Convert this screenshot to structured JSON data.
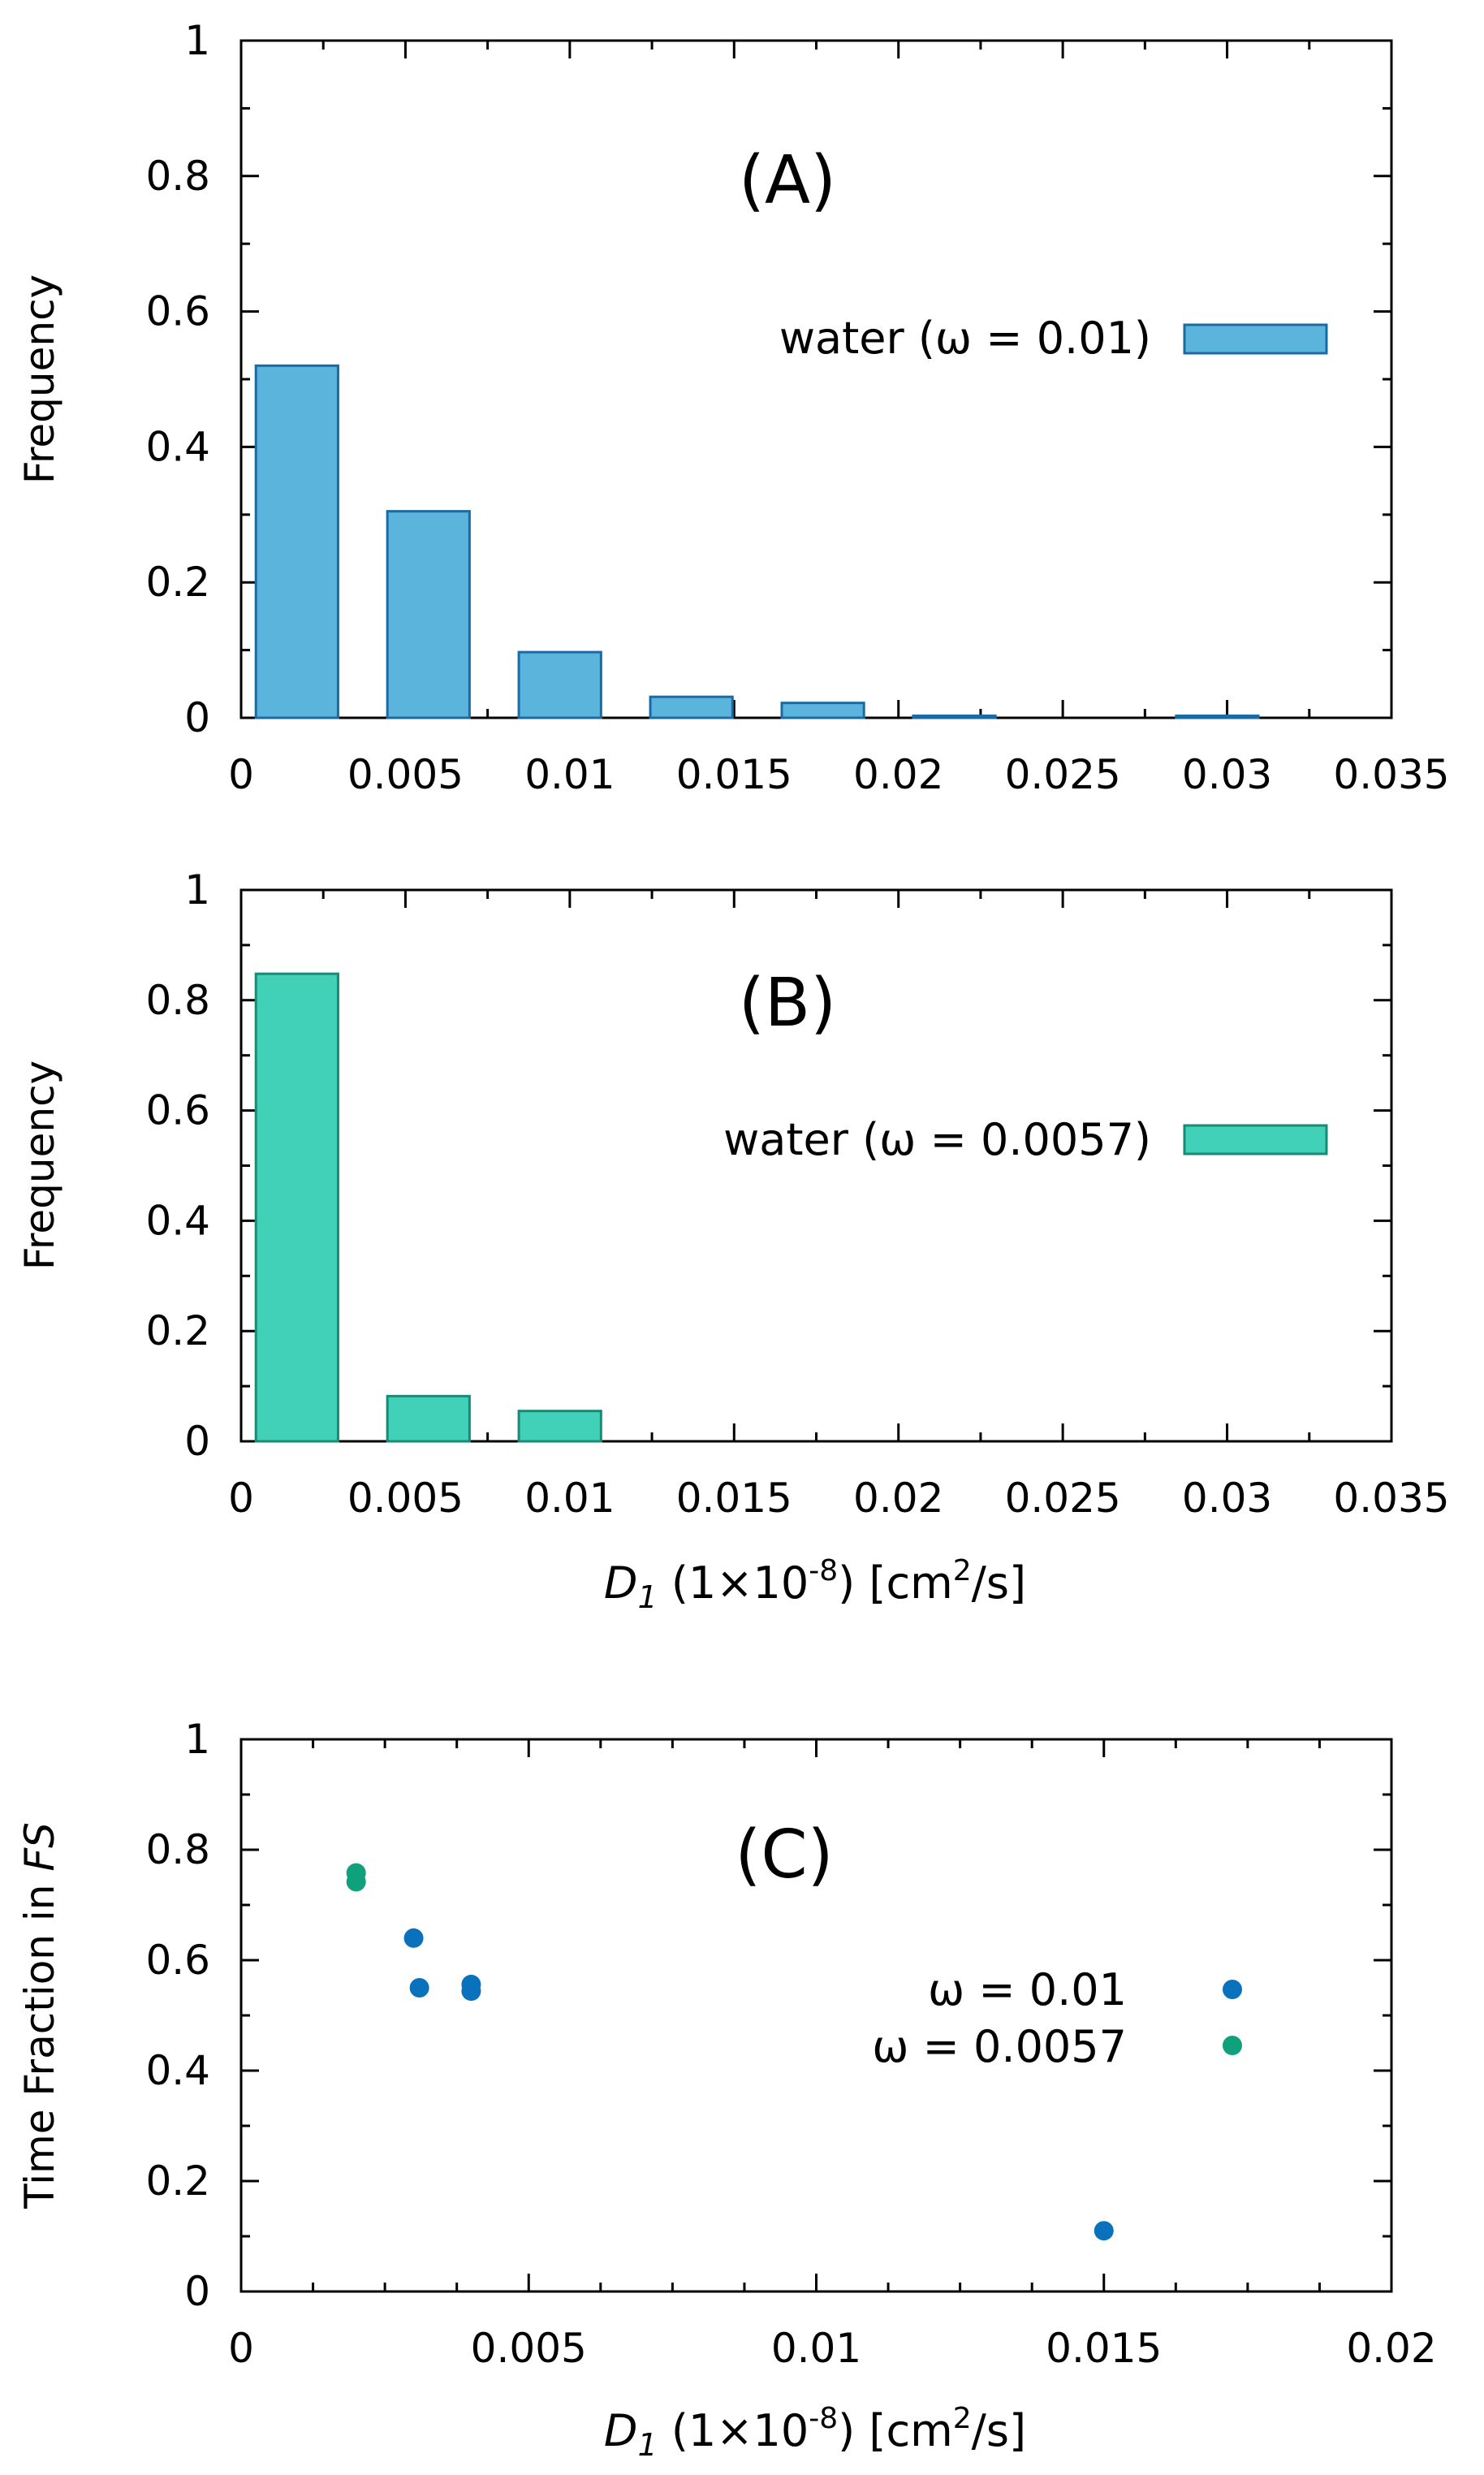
{
  "chart_data": [
    {
      "type": "bar",
      "panel_label": "(A)",
      "ylabel": "Frequency",
      "xlabel": "",
      "xlim": [
        0,
        0.035
      ],
      "ylim": [
        0,
        1
      ],
      "xticks": [
        "0",
        "0.005",
        "0.01",
        "0.015",
        "0.02",
        "0.025",
        "0.03",
        "0.035"
      ],
      "yticks": [
        "0",
        "0.2",
        "0.4",
        "0.6",
        "0.8",
        "1"
      ],
      "bin_width": 0.0025,
      "series": [
        {
          "name": "water (ω = 0.01)",
          "color": "#5ab4db",
          "edge_color": "#1a6ba3",
          "bins": [
            {
              "center": 0.0017,
              "value": 0.52
            },
            {
              "center": 0.0057,
              "value": 0.305
            },
            {
              "center": 0.0097,
              "value": 0.097
            },
            {
              "center": 0.0137,
              "value": 0.031
            },
            {
              "center": 0.0177,
              "value": 0.022
            },
            {
              "center": 0.0217,
              "value": 0.003
            },
            {
              "center": 0.0297,
              "value": 0.003
            }
          ]
        }
      ],
      "legend_position": "top-right"
    },
    {
      "type": "bar",
      "panel_label": "(B)",
      "ylabel": "Frequency",
      "xlabel": "D",
      "xlabel_sub": "1",
      "xlabel_rest": " (1×10",
      "xlabel_exp": "-8",
      "xlabel_unit": ") [cm",
      "xlabel_unit_exp": "2",
      "xlabel_unit_end": "/s]",
      "xlim": [
        0,
        0.035
      ],
      "ylim": [
        0,
        1
      ],
      "xticks": [
        "0",
        "0.005",
        "0.01",
        "0.015",
        "0.02",
        "0.025",
        "0.03",
        "0.035"
      ],
      "yticks": [
        "0",
        "0.2",
        "0.4",
        "0.6",
        "0.8",
        "1"
      ],
      "bin_width": 0.0025,
      "series": [
        {
          "name": "water (ω = 0.0057)",
          "color": "#40d1b8",
          "edge_color": "#1a8a75",
          "bins": [
            {
              "center": 0.0017,
              "value": 0.848
            },
            {
              "center": 0.0057,
              "value": 0.082
            },
            {
              "center": 0.0097,
              "value": 0.055
            }
          ]
        }
      ],
      "legend_position": "top-right"
    },
    {
      "type": "scatter",
      "panel_label": "(C)",
      "ylabel_pre": "Time Fraction in ",
      "ylabel_italic": "FS",
      "xlabel": "D",
      "xlabel_sub": "1",
      "xlabel_rest": " (1×10",
      "xlabel_exp": "-8",
      "xlabel_unit": ") [cm",
      "xlabel_unit_exp": "2",
      "xlabel_unit_end": "/s]",
      "xlim": [
        0,
        0.02
      ],
      "ylim": [
        0,
        1
      ],
      "xticks": [
        "0",
        "0.005",
        "0.01",
        "0.015",
        "0.02"
      ],
      "yticks": [
        "0",
        "0.2",
        "0.4",
        "0.6",
        "0.8",
        "1"
      ],
      "series": [
        {
          "name": "ω = 0.01",
          "color": "#0a72bd",
          "points": [
            {
              "x": 0.003,
              "y": 0.64
            },
            {
              "x": 0.0031,
              "y": 0.55
            },
            {
              "x": 0.004,
              "y": 0.556
            },
            {
              "x": 0.004,
              "y": 0.544
            },
            {
              "x": 0.015,
              "y": 0.11
            }
          ]
        },
        {
          "name": "ω = 0.0057",
          "color": "#0fa07c",
          "points": [
            {
              "x": 0.002,
              "y": 0.758
            },
            {
              "x": 0.002,
              "y": 0.742
            }
          ]
        }
      ],
      "legend_position": "right"
    }
  ]
}
